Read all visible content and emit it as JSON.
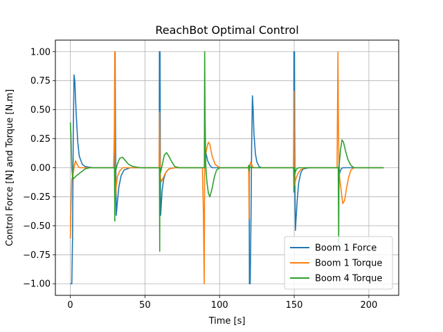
{
  "chart_data": {
    "type": "line",
    "title": "ReachBot Optimal Control",
    "xlabel": "Time [s]",
    "ylabel": "Control Force [N] and Torque [N.m]",
    "xlim": [
      -10,
      220
    ],
    "ylim": [
      -1.1,
      1.1
    ],
    "xticks": [
      0,
      50,
      100,
      150,
      200
    ],
    "xtick_labels": [
      "0",
      "50",
      "100",
      "150",
      "200"
    ],
    "yticks": [
      -1.0,
      -0.75,
      -0.5,
      -0.25,
      0.0,
      0.25,
      0.5,
      0.75,
      1.0
    ],
    "ytick_labels": [
      "−1.00",
      "−0.75",
      "−0.50",
      "−0.25",
      "0.00",
      "0.25",
      "0.50",
      "0.75",
      "1.00"
    ],
    "grid": true,
    "legend_position": "lower-right",
    "series": [
      {
        "name": "Boom 1 Force",
        "color": "#1f77b4",
        "x": [
          0,
          0.3,
          0.6,
          1.0,
          1.5,
          2.0,
          2.5,
          3.0,
          4.0,
          5.0,
          6.0,
          8.0,
          10.0,
          15.0,
          29.5,
          29.8,
          30.0,
          30.3,
          30.8,
          31.5,
          32.5,
          34.0,
          36.0,
          40.0,
          59.6,
          59.7,
          59.8,
          59.9,
          60.0,
          60.1,
          60.2,
          60.3,
          60.5,
          60.8,
          61.5,
          62.5,
          64.0,
          66.0,
          70.0,
          89.5,
          90.0,
          90.5,
          91.0,
          92.0,
          93.5,
          95.0,
          100.0,
          119.8,
          120.0,
          120.5,
          121.0,
          121.5,
          122.0,
          122.5,
          123.0,
          124.0,
          125.0,
          126.5,
          128.0,
          130.0,
          135.0,
          149.7,
          149.8,
          149.9,
          150.0,
          150.1,
          150.2,
          150.3,
          150.5,
          150.8,
          151.2,
          152.0,
          153.0,
          154.5,
          156.0,
          160.0,
          179.7,
          180.0,
          180.4,
          180.8,
          181.5,
          182.5,
          184.0,
          190.0,
          200.0,
          210.0
        ],
        "y": [
          -1.0,
          -1.0,
          -1.0,
          -1.0,
          -0.6,
          0.3,
          0.8,
          0.75,
          0.45,
          0.22,
          0.1,
          0.03,
          0.01,
          0.0,
          0.0,
          0.4,
          1.0,
          0.3,
          -0.41,
          -0.3,
          -0.17,
          -0.07,
          -0.02,
          0.0,
          0.0,
          1.0,
          0.48,
          1.0,
          0.5,
          1.0,
          0.55,
          0.0,
          -0.41,
          -0.35,
          -0.2,
          -0.1,
          -0.04,
          -0.01,
          0.0,
          0.0,
          0.0,
          0.15,
          0.12,
          0.06,
          0.02,
          0.0,
          0.0,
          0.0,
          -1.0,
          -1.0,
          -0.5,
          0.2,
          0.62,
          0.5,
          0.3,
          0.12,
          0.05,
          0.01,
          0.0,
          0.0,
          0.0,
          0.0,
          1.0,
          0.6,
          1.0,
          0.5,
          1.0,
          0.4,
          -0.2,
          -0.54,
          -0.45,
          -0.28,
          -0.13,
          -0.04,
          -0.01,
          0.0,
          0.0,
          0.02,
          -0.05,
          -0.03,
          -0.01,
          0.0,
          0.0,
          0.0,
          0.0,
          0.0
        ]
      },
      {
        "name": "Boom 1 Torque",
        "color": "#ff7f0e",
        "x": [
          0,
          0.5,
          1.0,
          1.8,
          2.5,
          3.5,
          4.5,
          6.0,
          8.0,
          12.0,
          29.0,
          29.5,
          29.8,
          30.0,
          30.3,
          30.8,
          31.5,
          33.0,
          35.0,
          40.0,
          59.5,
          59.8,
          60.0,
          60.3,
          61.0,
          62.5,
          64.0,
          66.0,
          70.0,
          88.5,
          89.2,
          89.7,
          90.0,
          90.5,
          91.5,
          92.5,
          93.5,
          95.0,
          97.0,
          100.0,
          105.0,
          119.5,
          119.8,
          120.0,
          120.5,
          121.0,
          121.5,
          122.0,
          123.0,
          125.0,
          130.0,
          149.5,
          149.8,
          150.0,
          150.4,
          151.0,
          152.5,
          154.0,
          157.0,
          162.0,
          178.7,
          179.0,
          179.3,
          179.6,
          180.0,
          180.5,
          181.5,
          182.5,
          183.8,
          185.0,
          186.5,
          188.0,
          190.0,
          195.0,
          210.0
        ],
        "y": [
          -0.61,
          -0.3,
          -0.1,
          -0.07,
          0.0,
          0.06,
          0.03,
          0.0,
          0.0,
          0.0,
          0.0,
          0.3,
          1.0,
          0.2,
          -0.25,
          -0.15,
          -0.08,
          -0.03,
          0.0,
          0.0,
          0.0,
          0.48,
          0.1,
          -0.08,
          -0.12,
          -0.08,
          -0.04,
          -0.01,
          0.0,
          0.0,
          -0.4,
          -1.0,
          0.0,
          0.1,
          0.17,
          0.22,
          0.2,
          0.1,
          0.03,
          0.0,
          0.0,
          0.0,
          -0.44,
          0.0,
          0.03,
          0.05,
          0.03,
          0.01,
          0.0,
          0.0,
          0.0,
          0.0,
          0.66,
          0.0,
          -0.15,
          -0.1,
          -0.05,
          -0.02,
          0.0,
          0.0,
          0.0,
          0.5,
          1.0,
          0.4,
          0.0,
          -0.1,
          -0.2,
          -0.31,
          -0.28,
          -0.18,
          -0.08,
          -0.02,
          0.0,
          0.0,
          0.0
        ]
      },
      {
        "name": "Boom 4 Torque",
        "color": "#2ca02c",
        "x": [
          0,
          0.4,
          1.0,
          1.6,
          2.5,
          4.0,
          6.0,
          8.0,
          10.0,
          13.0,
          17.0,
          29.6,
          29.8,
          30.0,
          30.5,
          31.5,
          33.0,
          35.0,
          37.0,
          39.0,
          42.0,
          47.0,
          59.7,
          59.9,
          60.0,
          60.5,
          61.5,
          63.0,
          64.5,
          66.0,
          68.0,
          70.0,
          73.0,
          78.0,
          89.8,
          90.0,
          90.3,
          90.8,
          91.5,
          92.5,
          93.5,
          95.0,
          96.5,
          98.0,
          100.0,
          105.0,
          119.3,
          119.5,
          119.8,
          120.0,
          120.3,
          121.0,
          123.0,
          130.0,
          149.6,
          149.8,
          150.0,
          150.5,
          151.5,
          153.0,
          154.5,
          156.0,
          159.0,
          164.0,
          179.5,
          179.8,
          180.0,
          180.3,
          181.0,
          182.0,
          183.0,
          184.5,
          186.0,
          188.0,
          190.0,
          193.0,
          198.0,
          210.0
        ],
        "y": [
          0.39,
          0.3,
          0.0,
          -0.1,
          -0.09,
          -0.07,
          -0.05,
          -0.03,
          -0.01,
          0.0,
          0.0,
          0.0,
          -0.46,
          0.0,
          -0.02,
          0.03,
          0.08,
          0.09,
          0.06,
          0.03,
          0.01,
          0.0,
          0.0,
          -0.72,
          0.0,
          -0.04,
          0.02,
          0.11,
          0.13,
          0.1,
          0.05,
          0.01,
          0.0,
          0.0,
          0.0,
          1.0,
          0.4,
          0.0,
          -0.12,
          -0.22,
          -0.25,
          -0.18,
          -0.08,
          -0.02,
          0.0,
          0.0,
          0.0,
          0.02,
          -0.03,
          0.02,
          0.0,
          0.0,
          0.0,
          0.0,
          0.0,
          -0.21,
          0.0,
          -0.05,
          -0.01,
          0.0,
          0.0,
          0.0,
          0.0,
          0.0,
          0.0,
          -0.65,
          0.0,
          0.05,
          0.15,
          0.24,
          0.22,
          0.14,
          0.07,
          0.02,
          0.0,
          0.0,
          0.0,
          0.0
        ]
      }
    ]
  }
}
